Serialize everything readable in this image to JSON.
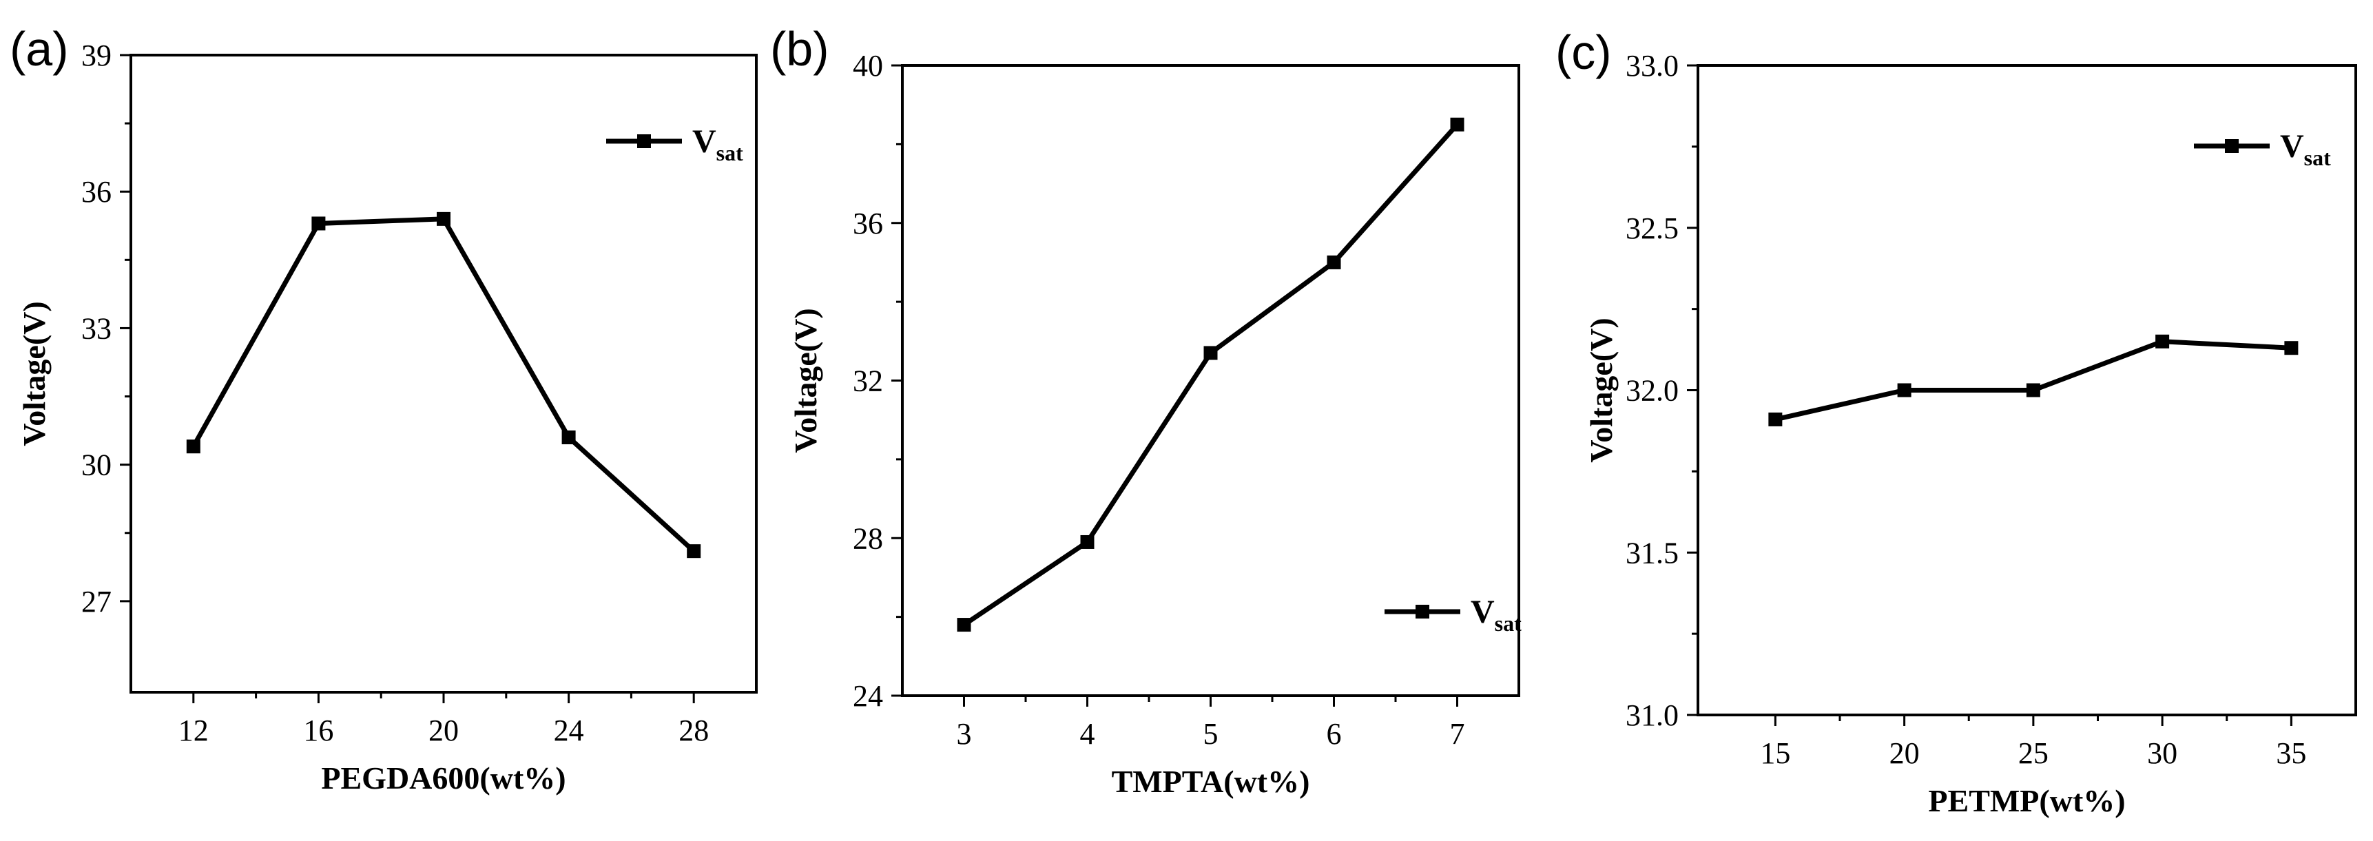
{
  "colors": {
    "line": "#000000",
    "axis": "#000000",
    "background": "#ffffff"
  },
  "chart_data": [
    {
      "panel": "(a)",
      "type": "line",
      "xlabel": "PEGDA600(wt%)",
      "ylabel": "Voltage(V)",
      "x": [
        12,
        16,
        20,
        24,
        28
      ],
      "xticks": [
        "12",
        "16",
        "20",
        "24",
        "28"
      ],
      "xlim": [
        10,
        30
      ],
      "yticks": [
        "27",
        "30",
        "33",
        "36",
        "39"
      ],
      "ytick_values": [
        27,
        30,
        33,
        36,
        39
      ],
      "ylim": [
        25,
        39
      ],
      "series": [
        {
          "name": "V",
          "subscript": "sat",
          "values": [
            30.4,
            35.3,
            35.4,
            30.6,
            28.1
          ]
        }
      ],
      "legend": "top-right"
    },
    {
      "panel": "(b)",
      "type": "line",
      "xlabel": "TMPTA(wt%)",
      "ylabel": "Voltage(V)",
      "x": [
        3,
        4,
        5,
        6,
        7
      ],
      "xticks": [
        "3",
        "4",
        "5",
        "6",
        "7"
      ],
      "xlim": [
        2.5,
        7.5
      ],
      "yticks": [
        "24",
        "28",
        "32",
        "36",
        "40"
      ],
      "ytick_values": [
        24,
        28,
        32,
        36,
        40
      ],
      "ylim": [
        24,
        40
      ],
      "series": [
        {
          "name": "V",
          "subscript": "sat",
          "values": [
            25.8,
            27.9,
            32.7,
            35.0,
            38.5
          ]
        }
      ],
      "legend": "bottom-right"
    },
    {
      "panel": "(c)",
      "type": "line",
      "xlabel": "PETMP(wt%)",
      "ylabel": "Voltage(V)",
      "x": [
        15,
        20,
        25,
        30,
        35
      ],
      "xticks": [
        "15",
        "20",
        "25",
        "30",
        "35"
      ],
      "xlim": [
        12,
        37.5
      ],
      "yticks": [
        "31.0",
        "31.5",
        "32.0",
        "32.5",
        "33.0"
      ],
      "ytick_values": [
        31.0,
        31.5,
        32.0,
        32.5,
        33.0
      ],
      "ylim": [
        31.0,
        33.0
      ],
      "series": [
        {
          "name": "V",
          "subscript": "sat",
          "values": [
            31.91,
            32.0,
            32.0,
            32.15,
            32.13
          ]
        }
      ],
      "legend": "top-right"
    }
  ]
}
